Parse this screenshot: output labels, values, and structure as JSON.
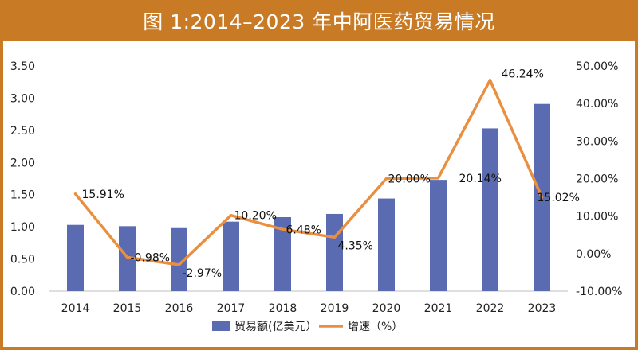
{
  "chart_data": {
    "type": "bar+line",
    "title": "图 1:2014–2023 年中阿医药贸易情况",
    "categories": [
      "2014",
      "2015",
      "2016",
      "2017",
      "2018",
      "2019",
      "2020",
      "2021",
      "2022",
      "2023"
    ],
    "series": [
      {
        "name": "贸易额(亿美元）",
        "type": "bar",
        "axis": "left",
        "values": [
          1.03,
          1.01,
          0.98,
          1.08,
          1.15,
          1.2,
          1.44,
          1.73,
          2.53,
          2.91
        ]
      },
      {
        "name": "增速（%）",
        "type": "line",
        "axis": "right",
        "values": [
          15.91,
          -0.98,
          -2.97,
          10.2,
          6.48,
          4.35,
          20.0,
          20.14,
          46.24,
          15.02
        ],
        "labels": [
          "15.91%",
          "-0.98%",
          "-2.97%",
          "10.20%",
          "6.48%",
          "4.35%",
          "20.00%",
          "20.14%",
          "46.24%",
          "15.02%"
        ]
      }
    ],
    "y_left": {
      "ylim": [
        0,
        3.5
      ],
      "ticks": [
        "0.00",
        "0.50",
        "1.00",
        "1.50",
        "2.00",
        "2.50",
        "3.00",
        "3.50"
      ]
    },
    "y_right": {
      "ylim": [
        -10,
        50
      ],
      "ticks": [
        "-10.00%",
        "0.00%",
        "10.00%",
        "20.00%",
        "30.00%",
        "40.00%",
        "50.00%"
      ]
    },
    "grid": false,
    "legend_position": "bottom",
    "colors": {
      "bar": "#5b6bb2",
      "line": "#e98f3f",
      "title_bg": "#c87a24",
      "title_text": "#ffffff"
    }
  }
}
